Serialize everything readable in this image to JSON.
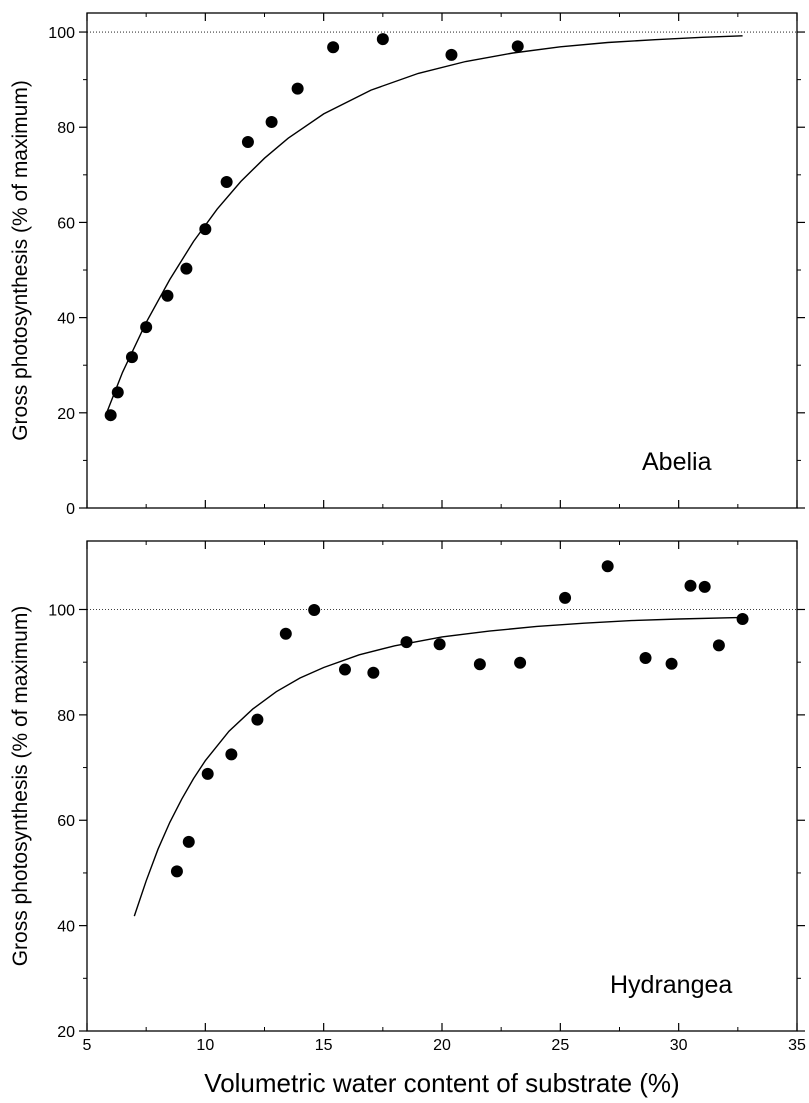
{
  "chart_data": [
    {
      "type": "scatter",
      "panel_label": "Abelia",
      "ylabel": "Gross photosynthesis (% of maximum)",
      "xlim": [
        5,
        35
      ],
      "ylim": [
        0,
        104
      ],
      "yticks": [
        0,
        20,
        40,
        60,
        80,
        100
      ],
      "reference_line": 100,
      "points": [
        [
          6.0,
          19.5
        ],
        [
          6.3,
          24.3
        ],
        [
          6.9,
          31.7
        ],
        [
          7.5,
          38.0
        ],
        [
          8.4,
          44.6
        ],
        [
          9.2,
          50.3
        ],
        [
          10.0,
          58.6
        ],
        [
          10.9,
          68.5
        ],
        [
          11.8,
          76.9
        ],
        [
          12.8,
          81.1
        ],
        [
          13.9,
          88.1
        ],
        [
          15.4,
          96.8
        ],
        [
          17.5,
          98.5
        ],
        [
          20.4,
          95.2
        ],
        [
          23.2,
          97.0
        ]
      ],
      "fit_curve": [
        [
          5.8,
          19.6
        ],
        [
          6.5,
          28.5
        ],
        [
          7.5,
          39.0
        ],
        [
          8.5,
          48.0
        ],
        [
          9.5,
          56.0
        ],
        [
          10.5,
          62.8
        ],
        [
          11.5,
          68.6
        ],
        [
          12.5,
          73.5
        ],
        [
          13.5,
          77.7
        ],
        [
          15.0,
          82.8
        ],
        [
          17.0,
          87.8
        ],
        [
          19.0,
          91.3
        ],
        [
          21.0,
          93.8
        ],
        [
          23.0,
          95.6
        ],
        [
          25.0,
          96.9
        ],
        [
          27.0,
          97.8
        ],
        [
          29.0,
          98.4
        ],
        [
          31.0,
          98.9
        ],
        [
          32.7,
          99.2
        ]
      ]
    },
    {
      "type": "scatter",
      "panel_label": "Hydrangea",
      "ylabel": "Gross photosynthesis (% of maximum)",
      "xlabel": "Volumetric water content of substrate (%)",
      "xlim": [
        5,
        35
      ],
      "xticks": [
        5,
        10,
        15,
        20,
        25,
        30,
        35
      ],
      "ylim": [
        20,
        113
      ],
      "yticks": [
        20,
        40,
        60,
        80,
        100
      ],
      "reference_line": 100,
      "points": [
        [
          8.8,
          50.3
        ],
        [
          9.3,
          55.9
        ],
        [
          10.1,
          68.8
        ],
        [
          11.1,
          72.5
        ],
        [
          12.2,
          79.1
        ],
        [
          13.4,
          95.4
        ],
        [
          14.6,
          99.9
        ],
        [
          15.9,
          88.6
        ],
        [
          17.1,
          88.0
        ],
        [
          18.5,
          93.8
        ],
        [
          19.9,
          93.4
        ],
        [
          21.6,
          89.6
        ],
        [
          23.3,
          89.9
        ],
        [
          25.2,
          102.2
        ],
        [
          27.0,
          108.2
        ],
        [
          28.6,
          90.8
        ],
        [
          29.7,
          89.7
        ],
        [
          30.5,
          104.5
        ],
        [
          31.1,
          104.3
        ],
        [
          31.7,
          93.2
        ],
        [
          32.7,
          98.2
        ]
      ],
      "fit_curve": [
        [
          7.0,
          41.8
        ],
        [
          7.5,
          48.5
        ],
        [
          8.0,
          54.5
        ],
        [
          8.5,
          59.6
        ],
        [
          9.0,
          64.0
        ],
        [
          9.5,
          67.9
        ],
        [
          10.0,
          71.3
        ],
        [
          11.0,
          76.9
        ],
        [
          12.0,
          81.1
        ],
        [
          13.0,
          84.4
        ],
        [
          14.0,
          87.0
        ],
        [
          15.0,
          89.0
        ],
        [
          16.5,
          91.4
        ],
        [
          18.0,
          93.1
        ],
        [
          20.0,
          94.8
        ],
        [
          22.0,
          95.9
        ],
        [
          24.0,
          96.8
        ],
        [
          26.0,
          97.4
        ],
        [
          28.0,
          97.9
        ],
        [
          30.0,
          98.2
        ],
        [
          32.7,
          98.5
        ]
      ]
    }
  ]
}
